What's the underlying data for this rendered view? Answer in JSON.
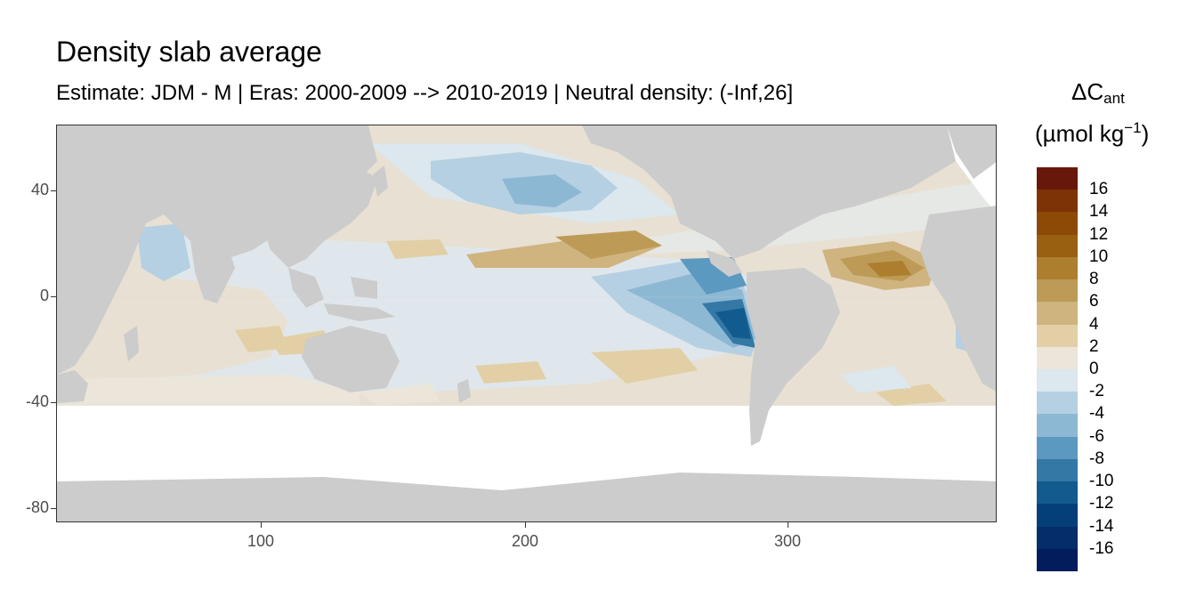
{
  "title": "Density slab average",
  "subtitle": "Estimate: JDM - M | Eras: 2000-2009 --> 2010-2019 | Neutral density: (-Inf,26]",
  "axes": {
    "y_ticks": [
      "40",
      "0",
      "-40",
      "-80"
    ],
    "x_ticks": [
      "100",
      "200",
      "300"
    ]
  },
  "legend": {
    "title_delta": "ΔC",
    "title_sub": "ant",
    "unit_main": "(µmol kg",
    "unit_sup": "−1",
    "unit_close": ")",
    "labels": [
      "16",
      "14",
      "12",
      "10",
      "8",
      "6",
      "4",
      "2",
      "0",
      "-2",
      "-4",
      "-6",
      "-8",
      "-10",
      "-12",
      "-14",
      "-16"
    ],
    "colors": [
      "#67180a",
      "#7e3307",
      "#8c4a06",
      "#9a6012",
      "#ac7e2e",
      "#bd9a56",
      "#cfb47f",
      "#e2cfa5",
      "#ece6da",
      "#dce7ee",
      "#b5d0e2",
      "#8cb8d4",
      "#5c99c1",
      "#3478a6",
      "#125b8e",
      "#053f7a",
      "#042d6a",
      "#021c5c"
    ]
  },
  "map": {
    "land_color": "#cccccc",
    "ocean_neutral": "#dfe7ec",
    "grid_color": "#ebebeb"
  }
}
